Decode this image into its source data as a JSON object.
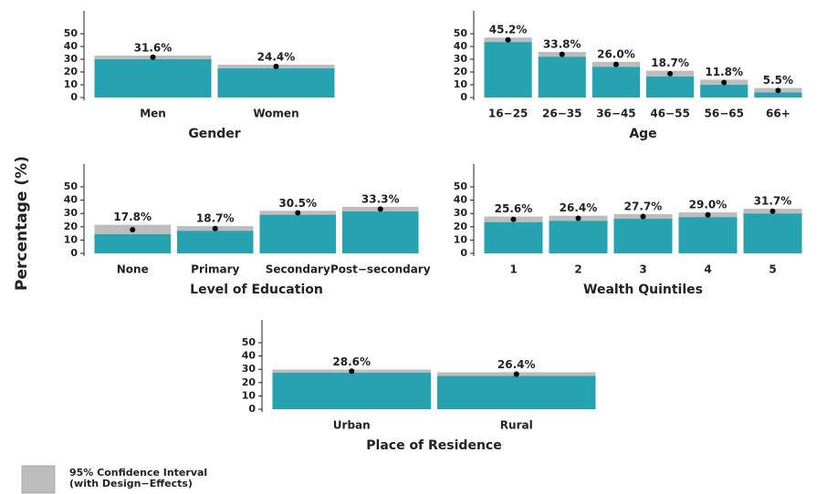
{
  "ylabel": "Percentage (%)",
  "legend": [
    "95% Confidence Interval",
    "(with Design−Effects)"
  ],
  "chart_data": [
    {
      "type": "bar",
      "xlabel": "Gender",
      "categories": [
        "Men",
        "Women"
      ],
      "values": [
        31.6,
        24.4
      ],
      "value_labels": [
        "31.6%",
        "24.4%"
      ],
      "ci_lower": [
        30,
        22.9
      ],
      "ci_upper": [
        32.9,
        25.7
      ],
      "ylim": [
        0,
        50
      ],
      "yticks": [
        0,
        10,
        20,
        30,
        40,
        50
      ],
      "color": "#26a2b1",
      "ci_color": "#bdbdbd"
    },
    {
      "type": "bar",
      "xlabel": "Age",
      "categories": [
        "16−25",
        "26−35",
        "36−45",
        "46−55",
        "56−65",
        "66+"
      ],
      "values": [
        45.2,
        33.8,
        26.0,
        18.7,
        11.8,
        5.5
      ],
      "value_labels": [
        "45.2%",
        "33.8%",
        "26.0%",
        "18.7%",
        "11.8%",
        "5.5%"
      ],
      "ci_lower": [
        43.5,
        32,
        24,
        16.5,
        10,
        4
      ],
      "ci_upper": [
        47,
        35.7,
        28,
        21,
        14,
        7.5
      ],
      "ylim": [
        0,
        50
      ],
      "yticks": [
        0,
        10,
        20,
        30,
        40,
        50
      ],
      "color": "#26a2b1",
      "ci_color": "#bdbdbd"
    },
    {
      "type": "bar",
      "xlabel": "Level of Education",
      "categories": [
        "None",
        "Primary",
        "Secondary",
        "Post−secondary"
      ],
      "values": [
        17.8,
        18.7,
        30.5,
        33.3
      ],
      "value_labels": [
        "17.8%",
        "18.7%",
        "30.5%",
        "33.3%"
      ],
      "ci_lower": [
        14.5,
        17,
        29,
        31.5
      ],
      "ci_upper": [
        21.5,
        20.5,
        32,
        35
      ],
      "ylim": [
        0,
        50
      ],
      "yticks": [
        0,
        10,
        20,
        30,
        40,
        50
      ],
      "color": "#26a2b1",
      "ci_color": "#bdbdbd"
    },
    {
      "type": "bar",
      "xlabel": "Wealth Quintiles",
      "categories": [
        "1",
        "2",
        "3",
        "4",
        "5"
      ],
      "values": [
        25.6,
        26.4,
        27.7,
        29.0,
        31.7
      ],
      "value_labels": [
        "25.6%",
        "26.4%",
        "27.7%",
        "29.0%",
        "31.7%"
      ],
      "ci_lower": [
        23.5,
        24.5,
        26,
        27.3,
        30
      ],
      "ci_upper": [
        27.7,
        28.3,
        29.5,
        30.8,
        33.5
      ],
      "ylim": [
        0,
        50
      ],
      "yticks": [
        0,
        10,
        20,
        30,
        40,
        50
      ],
      "color": "#26a2b1",
      "ci_color": "#bdbdbd"
    },
    {
      "type": "bar",
      "xlabel": "Place of Residence",
      "categories": [
        "Urban",
        "Rural"
      ],
      "values": [
        28.6,
        26.4
      ],
      "value_labels": [
        "28.6%",
        "26.4%"
      ],
      "ci_lower": [
        27.5,
        25
      ],
      "ci_upper": [
        29.8,
        27.8
      ],
      "ylim": [
        0,
        50
      ],
      "yticks": [
        0,
        10,
        20,
        30,
        40,
        50
      ],
      "color": "#26a2b1",
      "ci_color": "#bdbdbd"
    }
  ]
}
